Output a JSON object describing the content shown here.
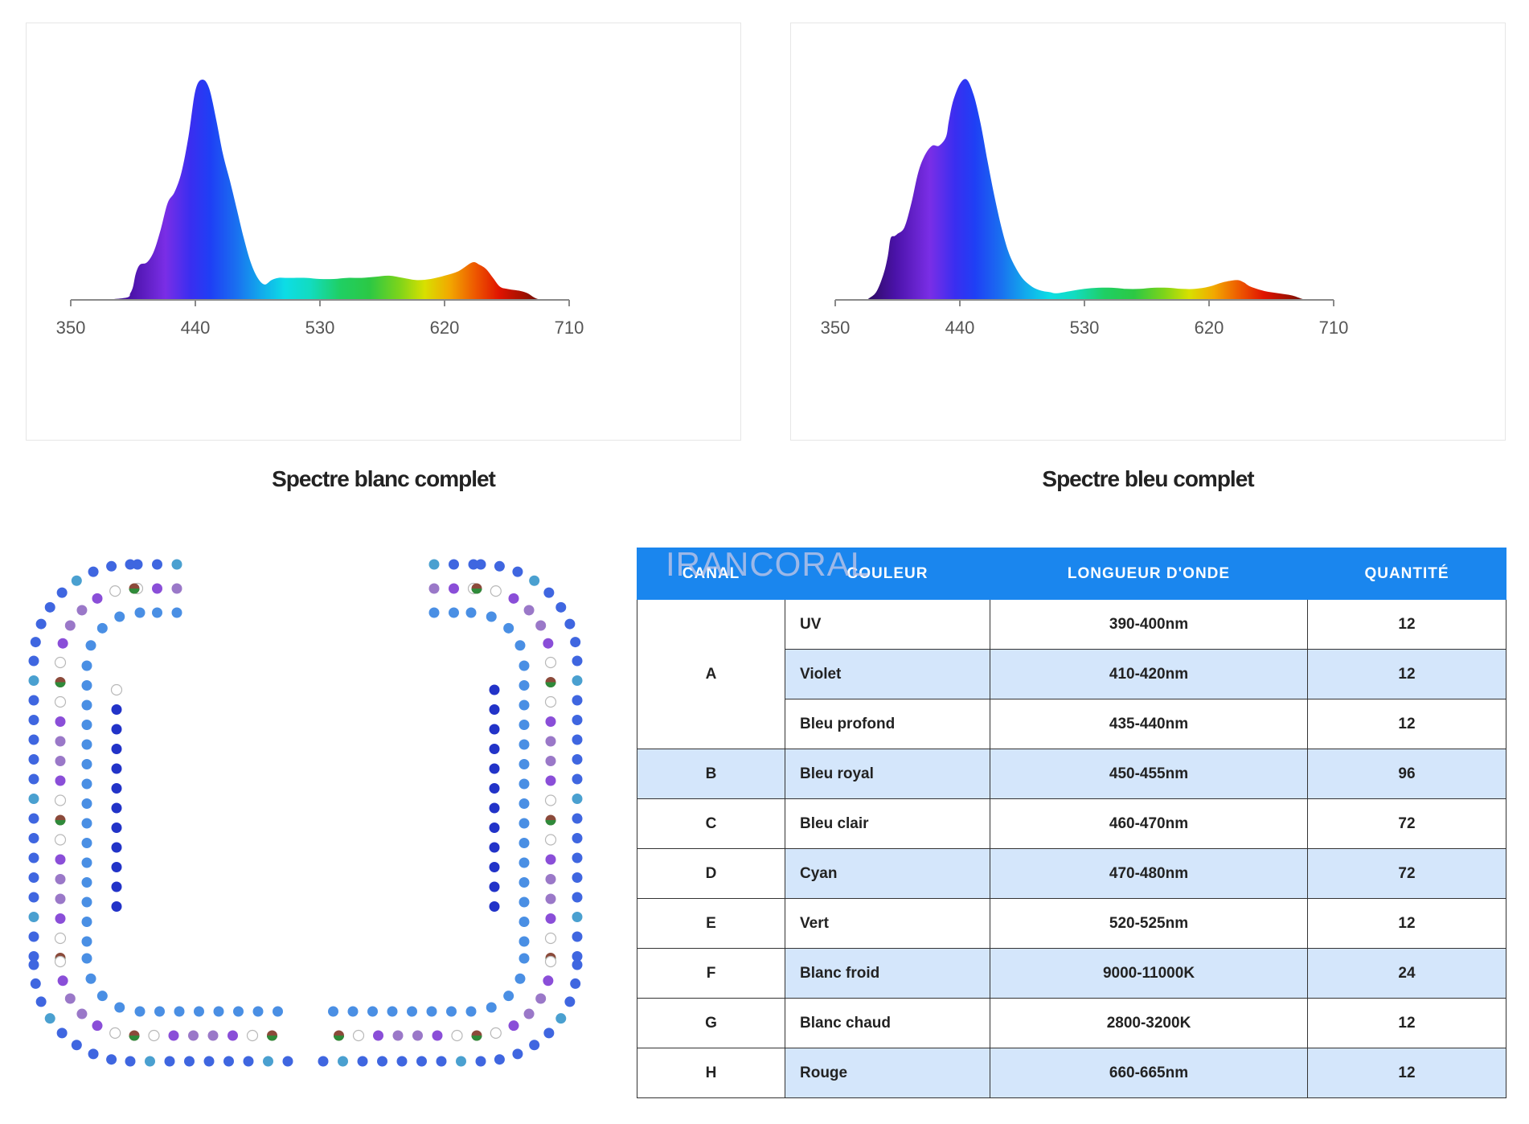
{
  "chart_data": [
    {
      "type": "area",
      "title": "Spectre blanc complet",
      "xlabel": "",
      "ylabel": "",
      "x_ticks": [
        350,
        440,
        530,
        620,
        710
      ],
      "xlim": [
        350,
        710
      ],
      "ylim": [
        0,
        1
      ],
      "grid": false,
      "x": [
        350,
        370,
        390,
        393,
        395,
        397,
        400,
        405,
        410,
        415,
        420,
        425,
        430,
        435,
        440,
        445,
        450,
        455,
        460,
        465,
        470,
        475,
        480,
        485,
        490,
        495,
        500,
        505,
        510,
        520,
        530,
        540,
        550,
        560,
        570,
        580,
        590,
        600,
        610,
        620,
        630,
        640,
        645,
        650,
        655,
        660,
        665,
        670,
        675,
        680,
        685,
        690,
        695,
        700,
        710
      ],
      "y": [
        0,
        0,
        0.01,
        0.03,
        0.06,
        0.12,
        0.16,
        0.17,
        0.22,
        0.32,
        0.44,
        0.49,
        0.58,
        0.74,
        0.95,
        1.0,
        0.96,
        0.82,
        0.66,
        0.54,
        0.41,
        0.28,
        0.17,
        0.1,
        0.07,
        0.09,
        0.1,
        0.1,
        0.1,
        0.1,
        0.095,
        0.095,
        0.1,
        0.1,
        0.105,
        0.11,
        0.1,
        0.09,
        0.095,
        0.11,
        0.13,
        0.17,
        0.16,
        0.14,
        0.1,
        0.06,
        0.05,
        0.045,
        0.04,
        0.03,
        0.01,
        0,
        0,
        0,
        0
      ]
    },
    {
      "type": "area",
      "title": "Spectre bleu complet",
      "xlabel": "",
      "ylabel": "",
      "x_ticks": [
        350,
        440,
        530,
        620,
        710
      ],
      "xlim": [
        350,
        710
      ],
      "ylim": [
        0,
        1
      ],
      "grid": false,
      "x": [
        350,
        370,
        375,
        380,
        385,
        388,
        390,
        393,
        395,
        400,
        405,
        410,
        415,
        420,
        425,
        430,
        432,
        435,
        440,
        445,
        450,
        455,
        460,
        465,
        470,
        475,
        480,
        485,
        490,
        495,
        500,
        505,
        510,
        520,
        530,
        540,
        550,
        560,
        570,
        580,
        590,
        600,
        610,
        620,
        630,
        640,
        645,
        650,
        660,
        670,
        680,
        690,
        700,
        710
      ],
      "y": [
        0,
        0,
        0.01,
        0.04,
        0.12,
        0.2,
        0.28,
        0.29,
        0.3,
        0.33,
        0.44,
        0.58,
        0.66,
        0.7,
        0.7,
        0.74,
        0.81,
        0.9,
        0.98,
        1.0,
        0.93,
        0.8,
        0.63,
        0.47,
        0.33,
        0.22,
        0.15,
        0.1,
        0.07,
        0.05,
        0.04,
        0.035,
        0.03,
        0.04,
        0.05,
        0.055,
        0.055,
        0.05,
        0.05,
        0.055,
        0.055,
        0.05,
        0.05,
        0.06,
        0.08,
        0.09,
        0.08,
        0.06,
        0.04,
        0.03,
        0.02,
        0,
        0,
        0
      ]
    }
  ],
  "led_layout": {
    "colors": {
      "royal_blue": "#3f66e0",
      "light_blue": "#4a8fe4",
      "cyan": "#4aa0d0",
      "deep_blue": "#2233c8",
      "violet": "#8a4ed8",
      "lavender": "#9a78c8",
      "white": "#ffffff",
      "mixed": "#8b4a3a"
    }
  },
  "table": {
    "headers": {
      "channel": "CANAL",
      "color": "COULEUR",
      "wavelength": "LONGUEUR D'ONDE",
      "quantity": "QUANTITÉ"
    },
    "rows": [
      {
        "channel": "A",
        "color": "UV",
        "wavelength": "390-400nm",
        "quantity": "12"
      },
      {
        "channel": "",
        "color": "Violet",
        "wavelength": "410-420nm",
        "quantity": "12"
      },
      {
        "channel": "",
        "color": "Bleu profond",
        "wavelength": "435-440nm",
        "quantity": "12"
      },
      {
        "channel": "B",
        "color": "Bleu royal",
        "wavelength": "450-455nm",
        "quantity": "96"
      },
      {
        "channel": "C",
        "color": "Bleu clair",
        "wavelength": "460-470nm",
        "quantity": "72"
      },
      {
        "channel": "D",
        "color": "Cyan",
        "wavelength": "470-480nm",
        "quantity": "72"
      },
      {
        "channel": "E",
        "color": "Vert",
        "wavelength": "520-525nm",
        "quantity": "12"
      },
      {
        "channel": "F",
        "color": "Blanc froid",
        "wavelength": "9000-11000K",
        "quantity": "24"
      },
      {
        "channel": "G",
        "color": "Blanc chaud",
        "wavelength": "2800-3200K",
        "quantity": "12"
      },
      {
        "channel": "H",
        "color": "Rouge",
        "wavelength": "660-665nm",
        "quantity": "12"
      }
    ],
    "header_color": "#1a86ee",
    "row_shade_color": "#d4e6fb"
  },
  "watermark": "IRANCORAL"
}
